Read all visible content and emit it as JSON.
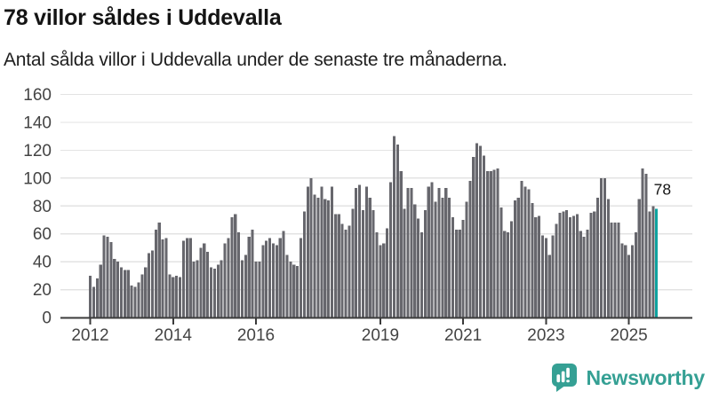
{
  "header": {
    "title": "78 villor såldes i Uddevalla",
    "subtitle": "Antal sålda villor i Uddevalla under de senaste tre månaderna."
  },
  "chart_data": {
    "type": "bar",
    "title": "78 villor såldes i Uddevalla",
    "subtitle": "Antal sålda villor i Uddevalla under de senaste tre månaderna.",
    "frequency": "monthly",
    "x_start": "2012-01",
    "x_end": "2025-09",
    "xlabel": "",
    "ylabel": "",
    "ylim": [
      0,
      160
    ],
    "grid": true,
    "legend": false,
    "yticks": [
      0,
      20,
      40,
      60,
      80,
      100,
      120,
      140,
      160
    ],
    "xticks": [
      {
        "label": "2012",
        "month_index": 0
      },
      {
        "label": "2014",
        "month_index": 24
      },
      {
        "label": "2016",
        "month_index": 48
      },
      {
        "label": "2019",
        "month_index": 84
      },
      {
        "label": "2021",
        "month_index": 108
      },
      {
        "label": "2023",
        "month_index": 132
      },
      {
        "label": "2025",
        "month_index": 156
      }
    ],
    "values": [
      30,
      22,
      28,
      38,
      59,
      58,
      54,
      42,
      40,
      36,
      34,
      34,
      23,
      22,
      25,
      31,
      36,
      46,
      48,
      63,
      68,
      56,
      57,
      31,
      29,
      30,
      29,
      55,
      57,
      57,
      40,
      41,
      50,
      53,
      47,
      36,
      35,
      38,
      41,
      53,
      57,
      72,
      74,
      61,
      41,
      45,
      58,
      63,
      40,
      40,
      52,
      55,
      57,
      53,
      52,
      57,
      62,
      45,
      40,
      38,
      37,
      57,
      76,
      94,
      100,
      88,
      86,
      94,
      85,
      84,
      94,
      74,
      74,
      67,
      63,
      66,
      78,
      93,
      95,
      77,
      94,
      86,
      77,
      61,
      52,
      53,
      64,
      97,
      130,
      124,
      105,
      78,
      93,
      93,
      81,
      71,
      61,
      77,
      94,
      97,
      83,
      93,
      86,
      93,
      86,
      72,
      63,
      63,
      70,
      83,
      98,
      115,
      125,
      123,
      116,
      105,
      105,
      106,
      107,
      79,
      62,
      61,
      69,
      84,
      86,
      98,
      94,
      92,
      82,
      72,
      73,
      59,
      57,
      45,
      59,
      67,
      75,
      76,
      77,
      72,
      73,
      74,
      62,
      58,
      63,
      75,
      76,
      86,
      100,
      100,
      85,
      68,
      68,
      68,
      53,
      52,
      45,
      52,
      61,
      85,
      107,
      103,
      76,
      80,
      78
    ],
    "highlight": {
      "index": 164,
      "value": 78,
      "label": "78"
    }
  },
  "colors": {
    "bar": "#67676d",
    "accent": "#0fa3a0",
    "grid": "#e3e3e3",
    "axis": "#3b3b3b",
    "tick_text": "#444444",
    "title_text": "#141414",
    "logo": "#35a094"
  },
  "branding": {
    "logo_text": "Newsworthy"
  }
}
